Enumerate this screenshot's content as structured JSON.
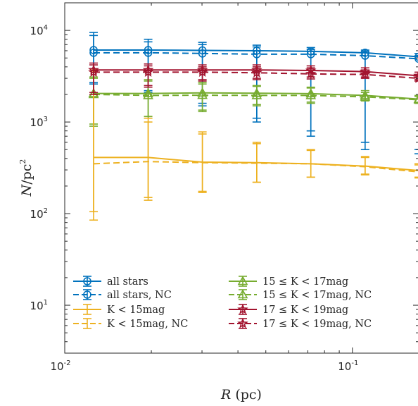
{
  "chart_data": {
    "type": "line",
    "xscale": "log",
    "yscale": "log",
    "xlim": [
      0.01,
      0.17
    ],
    "ylim": [
      3,
      20000
    ],
    "xlabel": {
      "var": "R",
      "unit": "(pc)"
    },
    "ylabel": {
      "var": "N",
      "slash": "/",
      "unit": "pc",
      "exp": "2"
    },
    "x_ticks": [
      {
        "value": 0.01,
        "base": "10",
        "exp": "-2"
      },
      {
        "value": 0.1,
        "base": "10",
        "exp": "-1"
      }
    ],
    "y_ticks": [
      {
        "value": 10,
        "base": "10",
        "exp": "1"
      },
      {
        "value": 100,
        "base": "10",
        "exp": "2"
      },
      {
        "value": 1000,
        "base": "10",
        "exp": "3"
      },
      {
        "value": 10000,
        "base": "10",
        "exp": "4"
      }
    ],
    "grid": false,
    "legend_position": "bottom",
    "x": [
      0.0126,
      0.0195,
      0.0301,
      0.0465,
      0.0717,
      0.1107,
      0.17
    ],
    "series": [
      {
        "name": "all stars",
        "color": "#0072BD",
        "marker": "circle",
        "dashed": false,
        "values": [
          6100,
          6100,
          6050,
          6000,
          5900,
          5700,
          5150
        ],
        "err_low": [
          2600,
          2100,
          1500,
          1000,
          700,
          500,
          450
        ],
        "err_high": [
          9500,
          8000,
          7400,
          6900,
          6500,
          6100,
          5600
        ]
      },
      {
        "name": "all stars, NC",
        "color": "#0072BD",
        "marker": "circle",
        "dashed": true,
        "values": [
          5700,
          5700,
          5600,
          5500,
          5500,
          5300,
          4900
        ],
        "err_low": [
          2700,
          2200,
          1600,
          1100,
          800,
          600,
          500
        ],
        "err_high": [
          8800,
          7500,
          7000,
          6600,
          6200,
          5900,
          5300
        ]
      },
      {
        "name": "15 ≤ K < 17mag",
        "color": "#77AC30",
        "marker": "triangle",
        "dashed": false,
        "values": [
          2050,
          2050,
          2080,
          2060,
          2040,
          1950,
          1780
        ],
        "err_low": [
          900,
          1100,
          1300,
          1500,
          1600,
          1700,
          1600
        ],
        "err_high": [
          3100,
          2900,
          2700,
          2500,
          2400,
          2200,
          1950
        ]
      },
      {
        "name": "15 ≤ K < 17mag, NC",
        "color": "#77AC30",
        "marker": "triangle",
        "dashed": true,
        "values": [
          2000,
          1950,
          1960,
          1950,
          1950,
          1880,
          1750
        ],
        "err_low": [
          950,
          1150,
          1350,
          1550,
          1650,
          1700,
          1600
        ],
        "err_high": [
          3000,
          2800,
          2600,
          2450,
          2350,
          2100,
          1900
        ]
      },
      {
        "name": "K < 15mag",
        "color": "#EDB120",
        "marker": "none",
        "dashed": false,
        "values": [
          410,
          410,
          365,
          360,
          350,
          330,
          295
        ],
        "err_low": [
          85,
          140,
          170,
          220,
          250,
          270,
          250
        ],
        "err_high": [
          3800,
          1100,
          780,
          600,
          500,
          420,
          350
        ]
      },
      {
        "name": "K < 15mag, NC",
        "color": "#EDB120",
        "marker": "none",
        "dashed": true,
        "values": [
          350,
          370,
          360,
          355,
          350,
          325,
          285
        ],
        "err_low": [
          105,
          150,
          175,
          220,
          250,
          265,
          245
        ],
        "err_high": [
          3600,
          1000,
          740,
          580,
          490,
          410,
          340
        ]
      },
      {
        "name": "17 ≤ K < 19mag",
        "color": "#A2142F",
        "marker": "star",
        "dashed": false,
        "values": [
          3700,
          3700,
          3700,
          3700,
          3650,
          3550,
          3200
        ],
        "err_low": [
          2100,
          2500,
          2900,
          3000,
          3100,
          3100,
          2900
        ],
        "err_high": [
          4400,
          4300,
          4200,
          4200,
          4100,
          3900,
          3500
        ]
      },
      {
        "name": "17 ≤ K < 19mag, NC",
        "color": "#A2142F",
        "marker": "star",
        "dashed": true,
        "values": [
          3500,
          3500,
          3500,
          3450,
          3350,
          3300,
          3000
        ],
        "err_low": [
          2000,
          2400,
          2800,
          2900,
          2950,
          3000,
          2800
        ],
        "err_high": [
          4200,
          4100,
          4000,
          4000,
          3900,
          3700,
          3300
        ]
      }
    ]
  }
}
